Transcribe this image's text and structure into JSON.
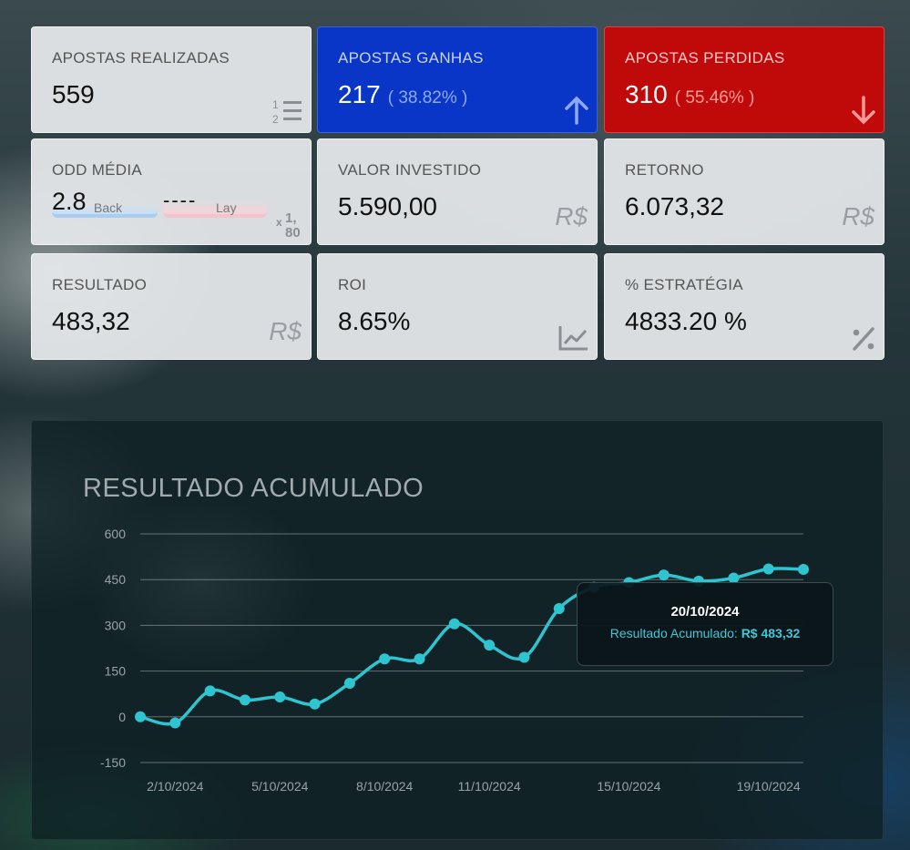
{
  "cards": [
    {
      "label": "APOSTAS REALIZADAS",
      "value": "559",
      "icon": "numbered-list-icon"
    },
    {
      "label": "APOSTAS GANHAS",
      "value": "217",
      "pct": "( 38.82% )",
      "icon": "arrow-up-icon",
      "color": "#0a36c8"
    },
    {
      "label": "APOSTAS PERDIDAS",
      "value": "310",
      "pct": "( 55.46% )",
      "icon": "arrow-down-icon",
      "color": "#c00a0a"
    },
    {
      "label": "ODD MÉDIA",
      "back_value": "2.8",
      "back_label": "Back",
      "lay_value": "----",
      "lay_label": "Lay",
      "icon": "odds-icon",
      "icon_text": {
        "x": "x",
        "one": "1,",
        "eighty": "80"
      }
    },
    {
      "label": "VALOR INVESTIDO",
      "value": "5.590,00",
      "icon_text": "R$"
    },
    {
      "label": "RETORNO",
      "value": "6.073,32",
      "icon_text": "R$"
    },
    {
      "label": "RESULTADO",
      "value": "483,32",
      "icon_text": "R$"
    },
    {
      "label": "ROI",
      "value": "8.65%",
      "icon": "line-chart-icon"
    },
    {
      "label": "% ESTRATÉGIA",
      "value": "4833.20 %",
      "icon": "percent-icon"
    }
  ],
  "chart_title": "RESULTADO ACUMULADO",
  "tooltip": {
    "date": "20/10/2024",
    "label": "Resultado Acumulado:",
    "value": "R$ 483,32"
  },
  "chart_data": {
    "type": "line",
    "title": "RESULTADO ACUMULADO",
    "x": [
      "1/10/2024",
      "2/10/2024",
      "3/10/2024",
      "4/10/2024",
      "5/10/2024",
      "6/10/2024",
      "7/10/2024",
      "8/10/2024",
      "9/10/2024",
      "10/10/2024",
      "11/10/2024",
      "12/10/2024",
      "13/10/2024",
      "14/10/2024",
      "15/10/2024",
      "16/10/2024",
      "17/10/2024",
      "18/10/2024",
      "19/10/2024",
      "20/10/2024"
    ],
    "series": [
      {
        "values": [
          0,
          -20,
          85,
          55,
          65,
          42,
          110,
          190,
          190,
          305,
          235,
          195,
          355,
          425,
          440,
          465,
          445,
          455,
          485,
          483.32
        ]
      }
    ],
    "xtick_labels": [
      "2/10/2024",
      "5/10/2024",
      "8/10/2024",
      "11/10/2024",
      "15/10/2024",
      "19/10/2024"
    ],
    "yticks": [
      600,
      450,
      300,
      150,
      0,
      -150
    ],
    "ylim": [
      -150,
      600
    ],
    "grid": true,
    "line_color": "#2ec4d0"
  }
}
